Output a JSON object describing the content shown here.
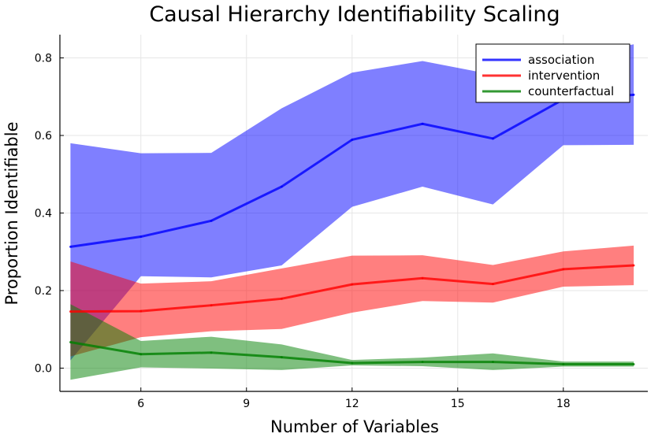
{
  "chart_data": {
    "type": "line",
    "title": "Causal Hierarchy Identifiability Scaling",
    "xlabel": "Number of Variables",
    "ylabel": "Proportion Identifiable",
    "xlim": [
      3.7,
      20.4
    ],
    "ylim": [
      -0.06,
      0.86
    ],
    "xticks": [
      6,
      9,
      12,
      15,
      18
    ],
    "yticks": [
      0.0,
      0.2,
      0.4,
      0.6,
      0.8
    ],
    "ytick_labels": [
      "0.0",
      "0.2",
      "0.4",
      "0.6",
      "0.8"
    ],
    "grid": true,
    "legend_position": "top-right",
    "x": [
      4,
      6,
      8,
      10,
      12,
      14,
      16,
      18,
      20
    ],
    "series": [
      {
        "name": "association",
        "color": "#0000ff",
        "values": [
          0.313,
          0.339,
          0.38,
          0.468,
          0.589,
          0.63,
          0.592,
          0.693,
          0.705
        ],
        "lower": [
          0.02,
          0.237,
          0.234,
          0.265,
          0.416,
          0.468,
          0.422,
          0.575,
          0.576
        ],
        "upper": [
          0.58,
          0.554,
          0.555,
          0.67,
          0.762,
          0.792,
          0.757,
          0.8,
          0.835
        ]
      },
      {
        "name": "intervention",
        "color": "#ff0000",
        "values": [
          0.146,
          0.147,
          0.162,
          0.179,
          0.216,
          0.232,
          0.217,
          0.255,
          0.265
        ],
        "lower": [
          0.03,
          0.08,
          0.095,
          0.101,
          0.143,
          0.173,
          0.169,
          0.21,
          0.214
        ],
        "upper": [
          0.275,
          0.218,
          0.224,
          0.257,
          0.29,
          0.291,
          0.266,
          0.301,
          0.316
        ]
      },
      {
        "name": "counterfactual",
        "color": "#008000",
        "values": [
          0.067,
          0.036,
          0.04,
          0.028,
          0.013,
          0.016,
          0.016,
          0.01,
          0.01
        ],
        "lower": [
          -0.03,
          0.002,
          -0.001,
          -0.005,
          0.007,
          0.005,
          -0.005,
          0.004,
          0.004
        ],
        "upper": [
          0.165,
          0.07,
          0.081,
          0.061,
          0.021,
          0.027,
          0.038,
          0.017,
          0.017
        ]
      }
    ]
  }
}
